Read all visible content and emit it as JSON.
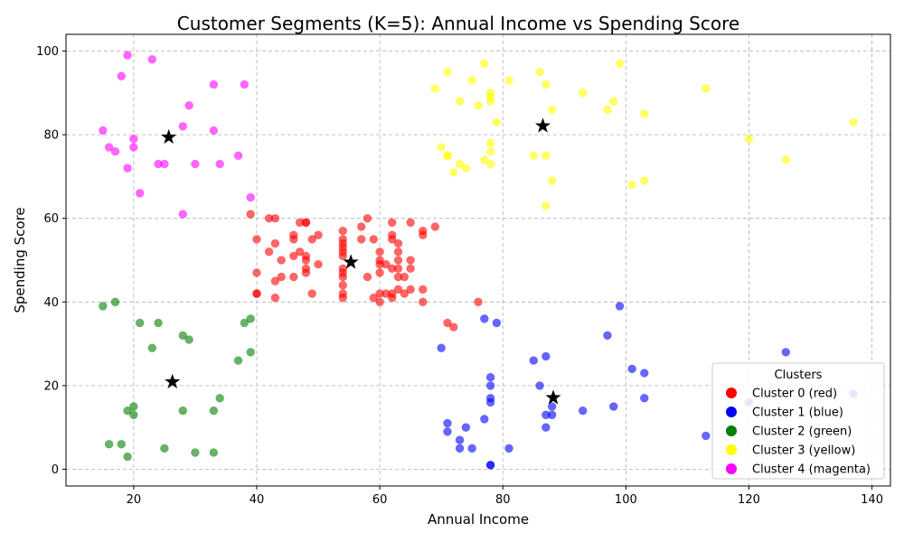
{
  "chart_data": {
    "type": "scatter",
    "title": "Customer Segments (K=5): Annual Income vs Spending Score",
    "xlabel": "Annual Income",
    "ylabel": "Spending Score",
    "xlim": [
      9,
      143
    ],
    "ylim": [
      -4,
      104
    ],
    "xticks": [
      20,
      40,
      60,
      80,
      100,
      120,
      140
    ],
    "yticks": [
      0,
      20,
      40,
      60,
      80,
      100
    ],
    "grid": true,
    "legend": {
      "title": "Clusters",
      "placement": "bottom-right"
    },
    "series": [
      {
        "name": "Cluster 0 (red)",
        "color": "#ff0000",
        "points": [
          [
            39,
            61
          ],
          [
            40,
            55
          ],
          [
            40,
            47
          ],
          [
            40,
            42
          ],
          [
            40,
            42
          ],
          [
            42,
            52
          ],
          [
            42,
            60
          ],
          [
            43,
            60
          ],
          [
            43,
            54
          ],
          [
            43,
            45
          ],
          [
            43,
            41
          ],
          [
            44,
            50
          ],
          [
            44,
            46
          ],
          [
            46,
            51
          ],
          [
            46,
            46
          ],
          [
            46,
            56
          ],
          [
            46,
            55
          ],
          [
            47,
            52
          ],
          [
            47,
            59
          ],
          [
            48,
            51
          ],
          [
            48,
            59
          ],
          [
            48,
            50
          ],
          [
            48,
            48
          ],
          [
            48,
            59
          ],
          [
            48,
            47
          ],
          [
            49,
            55
          ],
          [
            49,
            42
          ],
          [
            50,
            49
          ],
          [
            50,
            56
          ],
          [
            54,
            47
          ],
          [
            54,
            54
          ],
          [
            54,
            53
          ],
          [
            54,
            48
          ],
          [
            54,
            52
          ],
          [
            54,
            42
          ],
          [
            54,
            51
          ],
          [
            54,
            55
          ],
          [
            54,
            41
          ],
          [
            54,
            44
          ],
          [
            54,
            57
          ],
          [
            54,
            46
          ],
          [
            57,
            58
          ],
          [
            57,
            55
          ],
          [
            58,
            60
          ],
          [
            58,
            46
          ],
          [
            59,
            55
          ],
          [
            59,
            41
          ],
          [
            60,
            49
          ],
          [
            60,
            40
          ],
          [
            60,
            42
          ],
          [
            60,
            52
          ],
          [
            60,
            47
          ],
          [
            60,
            50
          ],
          [
            61,
            42
          ],
          [
            61,
            49
          ],
          [
            62,
            41
          ],
          [
            62,
            48
          ],
          [
            62,
            59
          ],
          [
            62,
            55
          ],
          [
            62,
            56
          ],
          [
            62,
            42
          ],
          [
            63,
            50
          ],
          [
            63,
            46
          ],
          [
            63,
            43
          ],
          [
            63,
            48
          ],
          [
            63,
            52
          ],
          [
            63,
            54
          ],
          [
            64,
            42
          ],
          [
            64,
            46
          ],
          [
            65,
            48
          ],
          [
            65,
            50
          ],
          [
            65,
            43
          ],
          [
            65,
            59
          ],
          [
            67,
            43
          ],
          [
            67,
            57
          ],
          [
            67,
            56
          ],
          [
            67,
            40
          ],
          [
            69,
            58
          ],
          [
            71,
            35
          ],
          [
            72,
            34
          ],
          [
            76,
            40
          ]
        ]
      },
      {
        "name": "Cluster 1 (blue)",
        "color": "#0000ff",
        "points": [
          [
            70,
            29
          ],
          [
            71,
            11
          ],
          [
            71,
            9
          ],
          [
            73,
            5
          ],
          [
            73,
            7
          ],
          [
            74,
            10
          ],
          [
            75,
            5
          ],
          [
            77,
            12
          ],
          [
            77,
            36
          ],
          [
            78,
            22
          ],
          [
            78,
            17
          ],
          [
            78,
            20
          ],
          [
            78,
            16
          ],
          [
            78,
            1
          ],
          [
            78,
            1
          ],
          [
            79,
            35
          ],
          [
            81,
            5
          ],
          [
            85,
            26
          ],
          [
            86,
            20
          ],
          [
            87,
            27
          ],
          [
            87,
            13
          ],
          [
            87,
            10
          ],
          [
            88,
            13
          ],
          [
            88,
            15
          ],
          [
            93,
            14
          ],
          [
            97,
            32
          ],
          [
            98,
            15
          ],
          [
            99,
            39
          ],
          [
            101,
            24
          ],
          [
            103,
            17
          ],
          [
            103,
            23
          ],
          [
            113,
            8
          ],
          [
            120,
            16
          ],
          [
            126,
            28
          ],
          [
            137,
            18
          ]
        ]
      },
      {
        "name": "Cluster 2 (green)",
        "color": "#008000",
        "points": [
          [
            15,
            39
          ],
          [
            16,
            6
          ],
          [
            17,
            40
          ],
          [
            18,
            6
          ],
          [
            19,
            3
          ],
          [
            19,
            14
          ],
          [
            20,
            15
          ],
          [
            20,
            13
          ],
          [
            21,
            35
          ],
          [
            23,
            29
          ],
          [
            24,
            35
          ],
          [
            25,
            5
          ],
          [
            28,
            14
          ],
          [
            28,
            32
          ],
          [
            29,
            31
          ],
          [
            30,
            4
          ],
          [
            33,
            4
          ],
          [
            33,
            14
          ],
          [
            34,
            17
          ],
          [
            37,
            26
          ],
          [
            38,
            35
          ],
          [
            39,
            36
          ],
          [
            39,
            28
          ]
        ]
      },
      {
        "name": "Cluster 3 (yellow)",
        "color": "#ffff00",
        "points": [
          [
            69,
            91
          ],
          [
            70,
            77
          ],
          [
            71,
            95
          ],
          [
            71,
            75
          ],
          [
            71,
            75
          ],
          [
            72,
            71
          ],
          [
            73,
            88
          ],
          [
            73,
            73
          ],
          [
            74,
            72
          ],
          [
            75,
            93
          ],
          [
            76,
            87
          ],
          [
            77,
            97
          ],
          [
            77,
            74
          ],
          [
            78,
            90
          ],
          [
            78,
            88
          ],
          [
            78,
            76
          ],
          [
            78,
            89
          ],
          [
            78,
            78
          ],
          [
            78,
            73
          ],
          [
            79,
            83
          ],
          [
            81,
            93
          ],
          [
            85,
            75
          ],
          [
            86,
            95
          ],
          [
            87,
            63
          ],
          [
            87,
            75
          ],
          [
            87,
            92
          ],
          [
            88,
            86
          ],
          [
            88,
            69
          ],
          [
            93,
            90
          ],
          [
            97,
            86
          ],
          [
            98,
            88
          ],
          [
            99,
            97
          ],
          [
            101,
            68
          ],
          [
            103,
            85
          ],
          [
            103,
            69
          ],
          [
            113,
            91
          ],
          [
            120,
            79
          ],
          [
            126,
            74
          ],
          [
            137,
            83
          ]
        ]
      },
      {
        "name": "Cluster 4 (magenta)",
        "color": "#ff00ff",
        "points": [
          [
            15,
            81
          ],
          [
            16,
            77
          ],
          [
            17,
            76
          ],
          [
            18,
            94
          ],
          [
            19,
            72
          ],
          [
            19,
            99
          ],
          [
            20,
            77
          ],
          [
            20,
            79
          ],
          [
            21,
            66
          ],
          [
            23,
            98
          ],
          [
            24,
            73
          ],
          [
            25,
            73
          ],
          [
            28,
            82
          ],
          [
            28,
            61
          ],
          [
            29,
            87
          ],
          [
            30,
            73
          ],
          [
            33,
            81
          ],
          [
            33,
            92
          ],
          [
            34,
            73
          ],
          [
            37,
            75
          ],
          [
            38,
            92
          ],
          [
            39,
            65
          ]
        ]
      }
    ],
    "centroids": [
      [
        55.3,
        49.5
      ],
      [
        88.2,
        17.1
      ],
      [
        26.3,
        20.9
      ],
      [
        86.5,
        82.1
      ],
      [
        25.7,
        79.4
      ]
    ]
  }
}
